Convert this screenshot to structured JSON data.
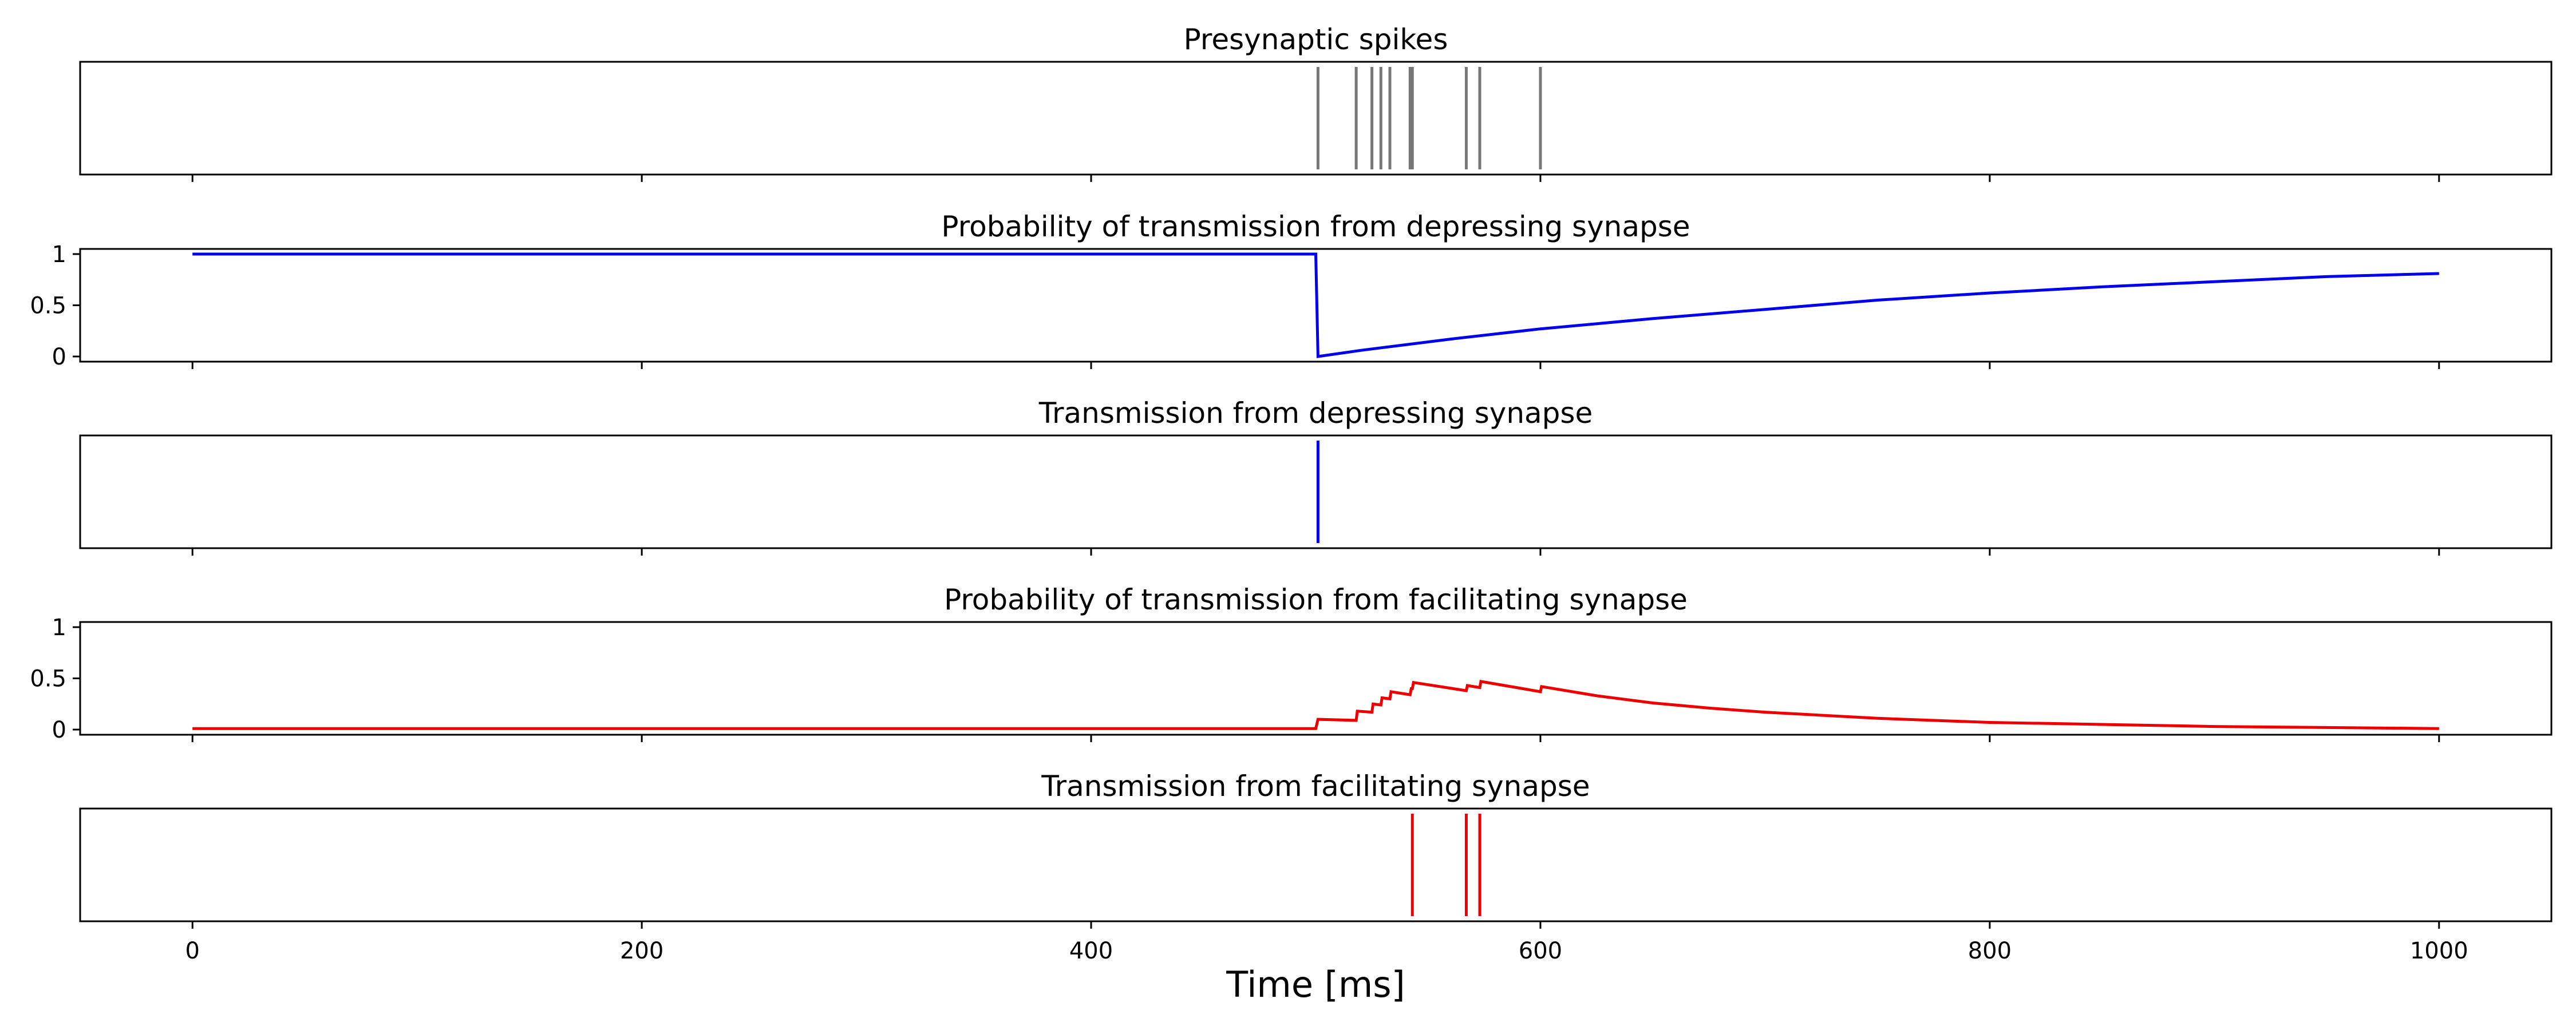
{
  "chart_data": {
    "type": "line",
    "xlabel": "Time [ms]",
    "xlim": [
      -50,
      1050
    ],
    "xticks": [
      0,
      200,
      400,
      600,
      800,
      1000
    ],
    "grid": false,
    "panels": [
      {
        "id": "presyn",
        "kind": "events",
        "title": "Presynaptic spikes",
        "color": "#777777",
        "events": [
          501,
          518,
          525,
          529,
          533,
          542,
          543,
          567,
          573,
          600
        ]
      },
      {
        "id": "dep-prob",
        "kind": "line",
        "title": "Probability of transmission from depressing synapse",
        "color": "#0000ee",
        "ylim": [
          0,
          1
        ],
        "yticks": [
          0,
          0.5,
          1
        ],
        "ytick_labels": [
          "0",
          "0.5",
          "1"
        ],
        "x": [
          0,
          500,
          501,
          520,
          560,
          600,
          650,
          700,
          750,
          800,
          850,
          900,
          950,
          1000
        ],
        "y": [
          1,
          1,
          0,
          0.06,
          0.17,
          0.27,
          0.37,
          0.46,
          0.55,
          0.62,
          0.68,
          0.73,
          0.78,
          0.81
        ]
      },
      {
        "id": "dep-trans",
        "kind": "events",
        "title": "Transmission from depressing synapse",
        "color": "#0000ee",
        "events": [
          501
        ]
      },
      {
        "id": "fac-prob",
        "kind": "line",
        "title": "Probability of transmission from facilitating synapse",
        "color": "#ee0000",
        "ylim": [
          0,
          1
        ],
        "yticks": [
          0,
          0.5,
          1
        ],
        "ytick_labels": [
          "0",
          "0.5",
          "1"
        ],
        "x": [
          0,
          500,
          501,
          518,
          518.5,
          525,
          525.5,
          529,
          529.5,
          533,
          533.5,
          542,
          542.5,
          543,
          543.5,
          567,
          567.5,
          573,
          573.5,
          600,
          600.5,
          625,
          650,
          675,
          700,
          750,
          800,
          850,
          900,
          950,
          1000
        ],
        "y": [
          0.01,
          0.01,
          0.1,
          0.09,
          0.18,
          0.17,
          0.25,
          0.24,
          0.31,
          0.3,
          0.37,
          0.34,
          0.4,
          0.4,
          0.46,
          0.38,
          0.43,
          0.41,
          0.47,
          0.37,
          0.42,
          0.33,
          0.26,
          0.21,
          0.17,
          0.11,
          0.07,
          0.05,
          0.03,
          0.02,
          0.01
        ]
      },
      {
        "id": "fac-trans",
        "kind": "events",
        "title": "Transmission from facilitating synapse",
        "color": "#ee0000",
        "events": [
          543,
          567,
          573
        ]
      }
    ]
  }
}
